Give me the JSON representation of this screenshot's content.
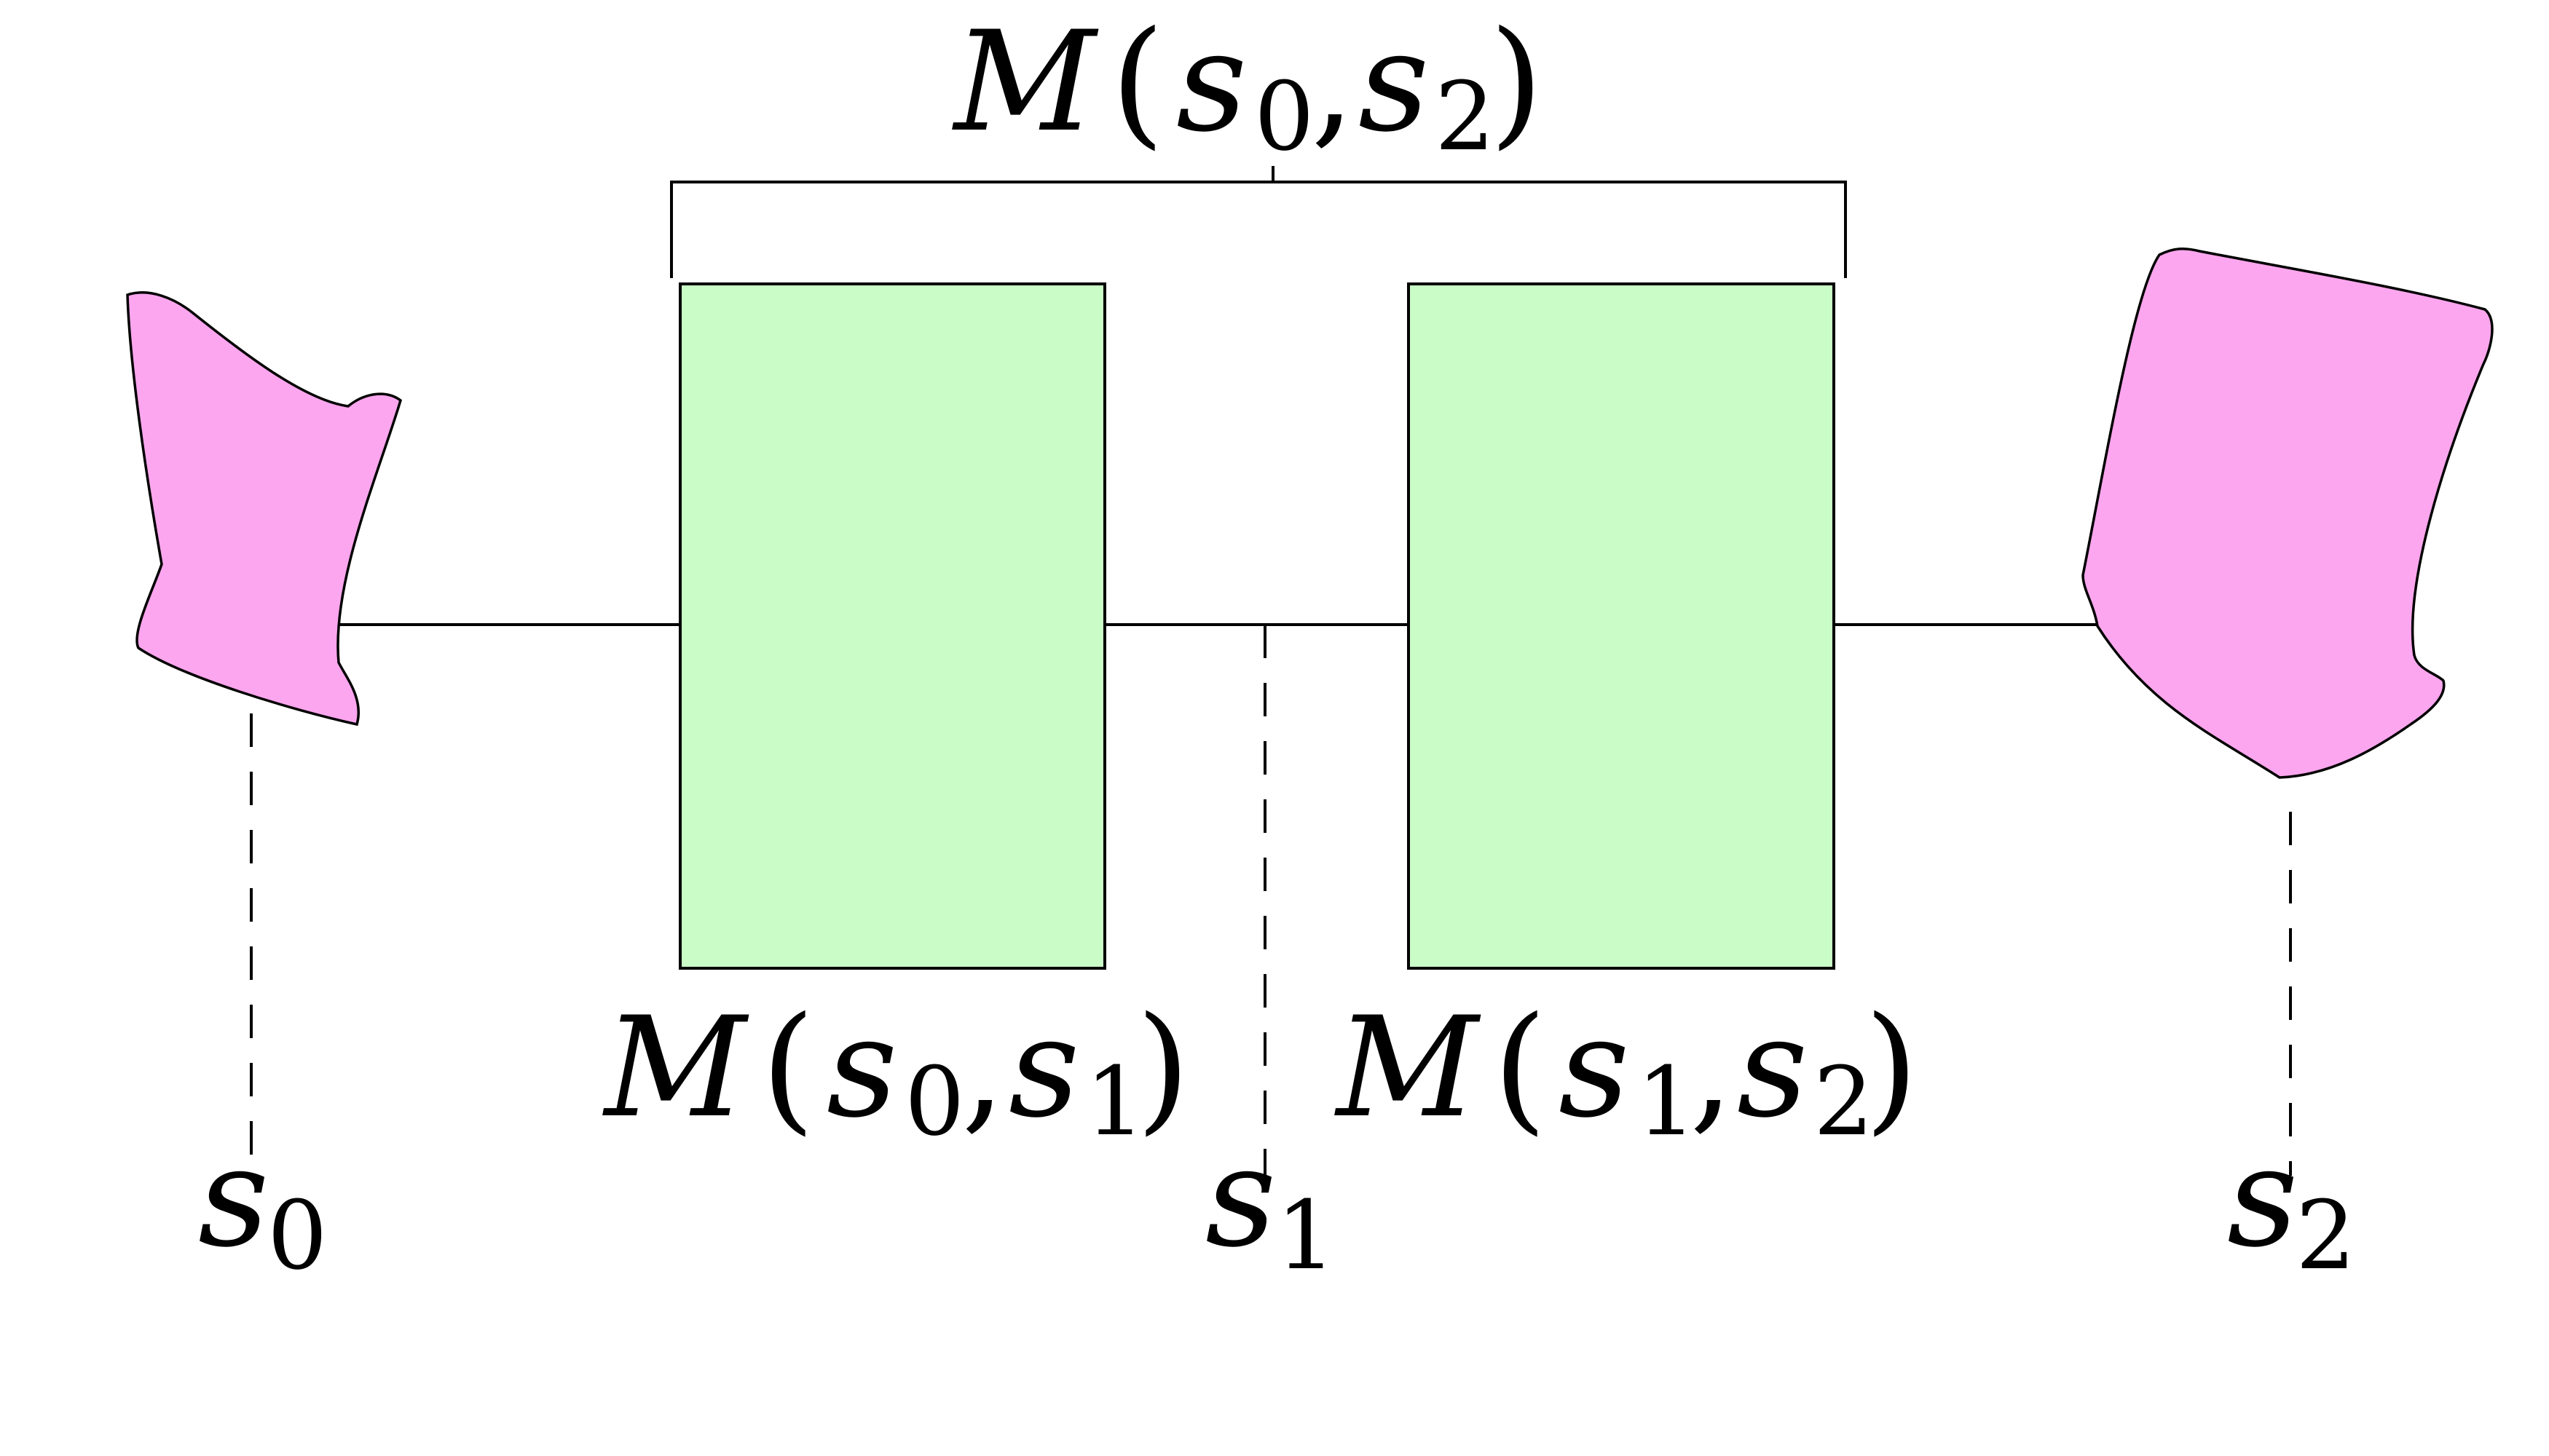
{
  "colors": {
    "box_fill": "#c9fcc6",
    "blob_fill": "#fba6ee",
    "stroke": "#000000"
  },
  "labels": {
    "top": {
      "func": "M",
      "open": "(",
      "a": "s",
      "a_sub": "0",
      "comma": ",",
      "b": "s",
      "b_sub": "2",
      "close": ")"
    },
    "left_box": {
      "func": "M",
      "open": "(",
      "a": "s",
      "a_sub": "0",
      "comma": ",",
      "b": "s",
      "b_sub": "1",
      "close": ")"
    },
    "right_box": {
      "func": "M",
      "open": "(",
      "a": "s",
      "a_sub": "1",
      "comma": ",",
      "b": "s",
      "b_sub": "2",
      "close": ")"
    },
    "s0": {
      "sym": "s",
      "sub": "0"
    },
    "s1": {
      "sym": "s",
      "sub": "1"
    },
    "s2": {
      "sym": "s",
      "sub": "2"
    }
  }
}
